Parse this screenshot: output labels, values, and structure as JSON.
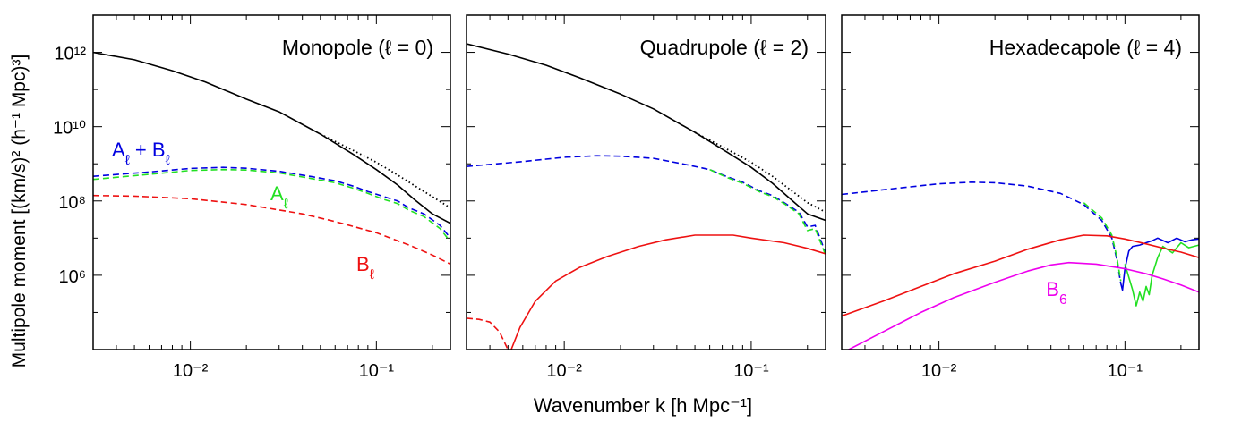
{
  "figure": {
    "ylabel": "Multipole moment  [(km/s)² (h⁻¹ Mpc)³]",
    "xlabel": "Wavenumber k [h Mpc⁻¹]"
  },
  "colors": {
    "black": "#000000",
    "blue": "#0000e0",
    "green": "#22e022",
    "red": "#ee1111",
    "magenta": "#ee00ee"
  },
  "chart_data": [
    {
      "type": "line",
      "title": "Monopole (ℓ = 0)",
      "xscale": "log",
      "yscale": "log",
      "xlim": [
        0.003,
        0.25
      ],
      "ylim": [
        10000,
        10000000000000.0
      ],
      "y_tick_labels": [
        "10¹²",
        "10¹⁰",
        "10⁸",
        "10⁶"
      ],
      "x_tick_labels": [
        "10⁻²",
        "10⁻¹"
      ],
      "annotations": [
        {
          "text": "A_ℓ + B_ℓ",
          "color": "blue"
        },
        {
          "text": "A_ℓ",
          "color": "green"
        },
        {
          "text": "B_ℓ",
          "color": "red"
        }
      ],
      "series": [
        {
          "color": "black",
          "style": "solid",
          "x": [
            0.003,
            0.005,
            0.008,
            0.012,
            0.02,
            0.03,
            0.05,
            0.075,
            0.1,
            0.13,
            0.16,
            0.2,
            0.25
          ],
          "y": [
            1000000000000.0,
            630000000000.0,
            320000000000.0,
            160000000000.0,
            55000000000.0,
            25000000000.0,
            6300000000.0,
            1800000000.0,
            700000000.0,
            270000000.0,
            110000000.0,
            45000000.0,
            25000000.0
          ]
        },
        {
          "color": "black",
          "style": "dotted",
          "x": [
            0.05,
            0.075,
            0.1,
            0.13,
            0.16,
            0.2,
            0.25
          ],
          "y": [
            6300000000.0,
            2300000000.0,
            1100000000.0,
            500000000.0,
            260000000.0,
            130000000.0,
            65000000.0
          ]
        },
        {
          "color": "blue",
          "style": "dashed",
          "x": [
            0.003,
            0.006,
            0.01,
            0.015,
            0.02,
            0.03,
            0.045,
            0.06,
            0.075,
            0.09,
            0.11,
            0.13,
            0.15,
            0.18,
            0.22,
            0.25
          ],
          "y": [
            460000000.0,
            600000000.0,
            750000000.0,
            800000000.0,
            760000000.0,
            630000000.0,
            450000000.0,
            350000000.0,
            250000000.0,
            180000000.0,
            130000000.0,
            100000000.0,
            65000000.0,
            45000000.0,
            22000000.0,
            10000000.0
          ]
        },
        {
          "color": "green",
          "style": "dashed",
          "x": [
            0.003,
            0.006,
            0.01,
            0.015,
            0.02,
            0.03,
            0.045,
            0.06,
            0.075,
            0.09,
            0.11,
            0.13,
            0.15,
            0.18,
            0.22,
            0.25
          ],
          "y": [
            380000000.0,
            520000000.0,
            660000000.0,
            700000000.0,
            680000000.0,
            570000000.0,
            400000000.0,
            310000000.0,
            220000000.0,
            160000000.0,
            110000000.0,
            85000000.0,
            56000000.0,
            38000000.0,
            18000000.0,
            8000000.0
          ]
        },
        {
          "color": "red",
          "style": "dashed",
          "x": [
            0.003,
            0.005,
            0.01,
            0.02,
            0.04,
            0.06,
            0.1,
            0.15,
            0.2,
            0.25
          ],
          "y": [
            140000000.0,
            135000000.0,
            115000000.0,
            80000000.0,
            45000000.0,
            28000000.0,
            14000000.0,
            6500000.0,
            3500000.0,
            2000000.0
          ]
        }
      ]
    },
    {
      "type": "line",
      "title": "Quadrupole (ℓ = 2)",
      "xscale": "log",
      "yscale": "log",
      "xlim": [
        0.003,
        0.25
      ],
      "ylim": [
        10000,
        10000000000000.0
      ],
      "x_tick_labels": [
        "10⁻²",
        "10⁻¹"
      ],
      "series": [
        {
          "color": "black",
          "style": "solid",
          "x": [
            0.003,
            0.005,
            0.008,
            0.012,
            0.02,
            0.03,
            0.05,
            0.075,
            0.1,
            0.13,
            0.16,
            0.2,
            0.25
          ],
          "y": [
            1700000000000.0,
            900000000000.0,
            450000000000.0,
            210000000000.0,
            75000000000.0,
            30000000000.0,
            7000000000.0,
            2000000000.0,
            800000000.0,
            300000000.0,
            120000000.0,
            45000000.0,
            30000000.0
          ]
        },
        {
          "color": "black",
          "style": "dotted",
          "x": [
            0.05,
            0.075,
            0.1,
            0.13,
            0.16,
            0.2,
            0.25
          ],
          "y": [
            7000000000.0,
            2400000000.0,
            1100000000.0,
            460000000.0,
            210000000.0,
            90000000.0,
            50000000.0
          ]
        },
        {
          "color": "blue",
          "style": "dashed",
          "x": [
            0.003,
            0.006,
            0.01,
            0.015,
            0.02,
            0.03,
            0.045,
            0.06,
            0.075,
            0.09,
            0.11,
            0.13,
            0.15,
            0.18,
            0.2,
            0.22,
            0.25
          ],
          "y": [
            850000000.0,
            1150000000.0,
            1500000000.0,
            1650000000.0,
            1600000000.0,
            1400000000.0,
            950000000.0,
            700000000.0,
            440000000.0,
            320000000.0,
            190000000.0,
            140000000.0,
            90000000.0,
            50000000.0,
            20000000.0,
            22000000.0,
            4000000.0
          ]
        },
        {
          "color": "green",
          "style": "dashed",
          "x": [
            0.06,
            0.075,
            0.09,
            0.11,
            0.13,
            0.15,
            0.18,
            0.2,
            0.22,
            0.25
          ],
          "y": [
            700000000.0,
            420000000.0,
            300000000.0,
            180000000.0,
            130000000.0,
            85000000.0,
            45000000.0,
            16000000.0,
            18000000.0,
            3500000.0
          ]
        },
        {
          "color": "red",
          "style": "solid",
          "x": [
            0.0052,
            0.0058,
            0.007,
            0.009,
            0.012,
            0.017,
            0.025,
            0.035,
            0.05,
            0.08,
            0.1,
            0.15,
            0.2,
            0.25
          ],
          "y": [
            10000,
            40000,
            200000,
            700000,
            1600000.0,
            3200000.0,
            6000000.0,
            9000000.0,
            12000000.0,
            12000000.0,
            10000000.0,
            7500000.0,
            5300000.0,
            3800000.0
          ]
        },
        {
          "color": "red",
          "style": "dashed",
          "x": [
            0.003,
            0.0035,
            0.004,
            0.0045,
            0.005
          ],
          "y": [
            70000,
            65000,
            55000,
            30000,
            10000
          ]
        }
      ]
    },
    {
      "type": "line",
      "title": "Hexadecapole (ℓ = 4)",
      "xscale": "log",
      "yscale": "log",
      "xlim": [
        0.003,
        0.25
      ],
      "ylim": [
        10000,
        10000000000000.0
      ],
      "x_tick_labels": [
        "10⁻²",
        "10⁻¹"
      ],
      "annotations": [
        {
          "text": "B_6",
          "color": "magenta"
        }
      ],
      "series": [
        {
          "color": "blue",
          "style": "dashed",
          "x": [
            0.003,
            0.006,
            0.01,
            0.015,
            0.02,
            0.03,
            0.045,
            0.06,
            0.075,
            0.085,
            0.09,
            0.095
          ],
          "y": [
            150000000.0,
            220000000.0,
            290000000.0,
            320000000.0,
            310000000.0,
            250000000.0,
            160000000.0,
            80000000.0,
            30000000.0,
            10000000.0,
            3000000.0,
            600000
          ]
        },
        {
          "color": "blue",
          "style": "solid",
          "x": [
            0.095,
            0.097,
            0.1,
            0.105,
            0.11,
            0.12,
            0.13,
            0.14,
            0.15,
            0.17,
            0.19,
            0.21,
            0.23,
            0.25
          ],
          "y": [
            600000,
            400000,
            1500000.0,
            4500000.0,
            6000000.0,
            6500000.0,
            7500000.0,
            8500000.0,
            10000000.0,
            7500000.0,
            10000000.0,
            8000000.0,
            9000000.0,
            9500000.0
          ]
        },
        {
          "color": "green",
          "style": "dashed",
          "x": [
            0.06,
            0.075,
            0.085,
            0.09,
            0.095
          ],
          "y": [
            90000000.0,
            35000000.0,
            12000000.0,
            3500000.0,
            700000
          ]
        },
        {
          "color": "green",
          "style": "solid",
          "x": [
            0.1,
            0.11,
            0.115,
            0.12,
            0.125,
            0.13,
            0.135,
            0.14,
            0.15,
            0.16,
            0.18,
            0.2,
            0.22,
            0.25
          ],
          "y": [
            2000000.0,
            400000,
            150000,
            350000,
            200000,
            500000,
            300000,
            1000000.0,
            3000000.0,
            6000000.0,
            4000000.0,
            7500000.0,
            5500000.0,
            6500000.0
          ]
        },
        {
          "color": "red",
          "style": "solid",
          "x": [
            0.003,
            0.005,
            0.008,
            0.012,
            0.02,
            0.03,
            0.045,
            0.06,
            0.08,
            0.1,
            0.13,
            0.16,
            0.2,
            0.25
          ],
          "y": [
            80000,
            200000,
            500000,
            1100000.0,
            2400000.0,
            5000000.0,
            9000000.0,
            12000000.0,
            11500000.0,
            9500000.0,
            7000000.0,
            5400000.0,
            4200000.0,
            3000000.0
          ]
        },
        {
          "color": "magenta",
          "style": "solid",
          "x": [
            0.003,
            0.005,
            0.008,
            0.012,
            0.02,
            0.03,
            0.04,
            0.05,
            0.07,
            0.1,
            0.13,
            0.16,
            0.2,
            0.25
          ],
          "y": [
            8000,
            30000,
            100000,
            250000,
            650000,
            1300000.0,
            1900000.0,
            2200000.0,
            2000000.0,
            1500000.0,
            1100000.0,
            800000,
            550000,
            350000
          ]
        }
      ]
    }
  ]
}
